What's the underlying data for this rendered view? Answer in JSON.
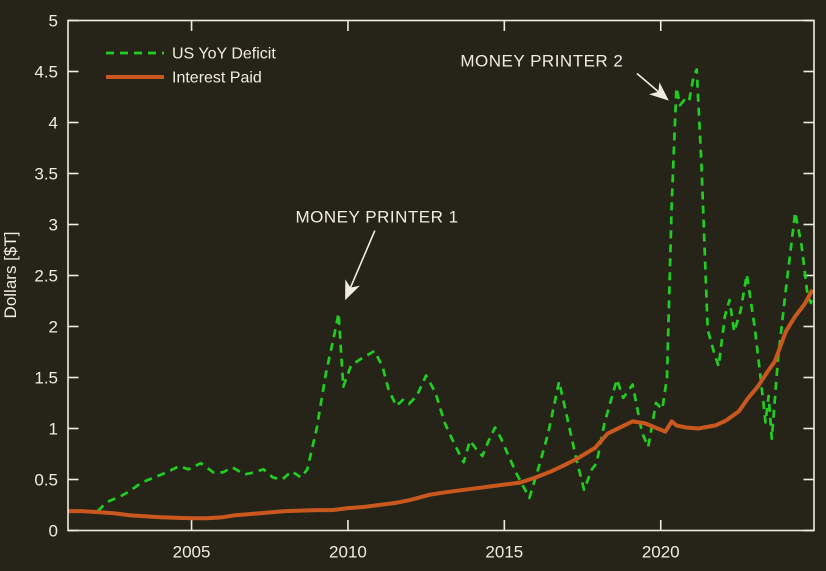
{
  "chart_data": {
    "type": "line",
    "title": "",
    "xlabel": "",
    "ylabel": "Dollars [$T]",
    "xlim": [
      2001.05,
      2024.9
    ],
    "ylim": [
      0,
      5
    ],
    "x_ticks": [
      2005,
      2010,
      2015,
      2020
    ],
    "x_tick_labels": [
      "2005",
      "2010",
      "2015",
      "2020"
    ],
    "y_ticks": [
      0,
      0.5,
      1,
      1.5,
      2,
      2.5,
      3,
      3.5,
      4,
      4.5,
      5
    ],
    "y_tick_labels": [
      "0",
      "0.5",
      "1",
      "1.5",
      "2",
      "2.5",
      "3",
      "3.5",
      "4",
      "4.5",
      "5"
    ],
    "grid": false,
    "box": true,
    "legend_position": "top-left",
    "background_color": "#262419",
    "axis_color": "#f0ecdf",
    "series": [
      {
        "name": "US YoY Deficit",
        "color": "#21cd21",
        "style": "dashed",
        "x": [
          2002.0,
          2002.3,
          2002.7,
          2003.0,
          2003.4,
          2003.8,
          2004.2,
          2004.6,
          2004.9,
          2005.3,
          2005.7,
          2006.0,
          2006.3,
          2006.7,
          2007.0,
          2007.3,
          2007.6,
          2007.9,
          2008.2,
          2008.5,
          2008.7,
          2009.0,
          2009.3,
          2009.55,
          2009.7,
          2009.85,
          2010.1,
          2010.4,
          2010.85,
          2011.1,
          2011.3,
          2011.55,
          2011.75,
          2011.95,
          2012.2,
          2012.5,
          2012.8,
          2013.1,
          2013.4,
          2013.7,
          2013.9,
          2014.1,
          2014.3,
          2014.5,
          2014.7,
          2014.9,
          2015.05,
          2015.4,
          2015.8,
          2016.1,
          2016.4,
          2016.75,
          2017.0,
          2017.3,
          2017.55,
          2017.8,
          2017.95,
          2018.2,
          2018.6,
          2018.8,
          2019.1,
          2019.4,
          2019.6,
          2019.85,
          2020.05,
          2020.2,
          2020.35,
          2020.5,
          2020.62,
          2020.75,
          2020.9,
          2021.05,
          2021.15,
          2021.3,
          2021.5,
          2021.7,
          2021.85,
          2022.05,
          2022.2,
          2022.35,
          2022.55,
          2022.75,
          2023.0,
          2023.2,
          2023.35,
          2023.45,
          2023.55,
          2023.75,
          2024.0,
          2024.3,
          2024.5,
          2024.7,
          2024.8,
          2024.85
        ],
        "y": [
          0.19,
          0.28,
          0.33,
          0.38,
          0.47,
          0.52,
          0.57,
          0.63,
          0.6,
          0.66,
          0.57,
          0.57,
          0.62,
          0.55,
          0.57,
          0.6,
          0.52,
          0.5,
          0.58,
          0.52,
          0.6,
          1.0,
          1.55,
          1.9,
          2.13,
          1.41,
          1.62,
          1.68,
          1.76,
          1.61,
          1.38,
          1.22,
          1.28,
          1.24,
          1.32,
          1.52,
          1.35,
          1.05,
          0.85,
          0.67,
          0.88,
          0.8,
          0.73,
          0.88,
          1.01,
          0.9,
          0.79,
          0.55,
          0.32,
          0.62,
          0.95,
          1.46,
          1.12,
          0.7,
          0.4,
          0.6,
          0.66,
          1.05,
          1.48,
          1.3,
          1.43,
          0.96,
          0.82,
          1.25,
          1.19,
          1.5,
          3.2,
          4.34,
          4.17,
          4.22,
          4.2,
          4.45,
          4.52,
          3.6,
          1.97,
          1.75,
          1.61,
          2.1,
          2.26,
          1.95,
          2.15,
          2.51,
          2.0,
          1.48,
          1.06,
          1.32,
          0.9,
          1.68,
          2.36,
          3.12,
          2.8,
          2.3,
          2.23,
          2.28
        ]
      },
      {
        "name": "Interest Paid",
        "color": "#c9581f",
        "style": "solid",
        "x": [
          2001.05,
          2001.5,
          2002.0,
          2002.5,
          2003.0,
          2003.5,
          2004.0,
          2004.5,
          2005.0,
          2005.5,
          2006.0,
          2006.4,
          2006.8,
          2007.2,
          2007.6,
          2008.0,
          2008.5,
          2009.0,
          2009.5,
          2010.0,
          2010.5,
          2011.0,
          2011.5,
          2012.0,
          2012.6,
          2013.0,
          2013.5,
          2014.0,
          2014.5,
          2015.0,
          2015.5,
          2016.0,
          2016.5,
          2016.85,
          2017.3,
          2017.9,
          2018.3,
          2018.9,
          2019.1,
          2019.5,
          2019.9,
          2020.15,
          2020.35,
          2020.5,
          2020.8,
          2021.2,
          2021.75,
          2022.1,
          2022.5,
          2022.8,
          2023.1,
          2023.4,
          2023.65,
          2024.0,
          2024.3,
          2024.6,
          2024.85
        ],
        "y": [
          0.19,
          0.19,
          0.18,
          0.17,
          0.15,
          0.14,
          0.13,
          0.125,
          0.12,
          0.12,
          0.13,
          0.15,
          0.16,
          0.17,
          0.18,
          0.19,
          0.195,
          0.2,
          0.2,
          0.22,
          0.23,
          0.25,
          0.27,
          0.3,
          0.35,
          0.37,
          0.39,
          0.41,
          0.43,
          0.45,
          0.47,
          0.52,
          0.58,
          0.63,
          0.7,
          0.81,
          0.95,
          1.04,
          1.07,
          1.05,
          1.0,
          0.97,
          1.07,
          1.03,
          1.01,
          1.0,
          1.03,
          1.08,
          1.17,
          1.3,
          1.41,
          1.55,
          1.66,
          1.95,
          2.1,
          2.22,
          2.36
        ]
      }
    ],
    "annotations": [
      {
        "text": "MONEY PRINTER 1",
        "text_x": 2010.93,
        "text_y": 3.08,
        "arrow_from_x": 2010.86,
        "arrow_from_y": 2.94,
        "arrow_to_x": 2009.94,
        "arrow_to_y": 2.28
      },
      {
        "text": "MONEY PRINTER 2",
        "text_x": 2016.2,
        "text_y": 4.61,
        "arrow_from_x": 2019.24,
        "arrow_from_y": 4.48,
        "arrow_to_x": 2020.2,
        "arrow_to_y": 4.23
      }
    ]
  },
  "legend": {
    "items": [
      {
        "label": "US YoY Deficit"
      },
      {
        "label": "Interest Paid"
      }
    ]
  }
}
